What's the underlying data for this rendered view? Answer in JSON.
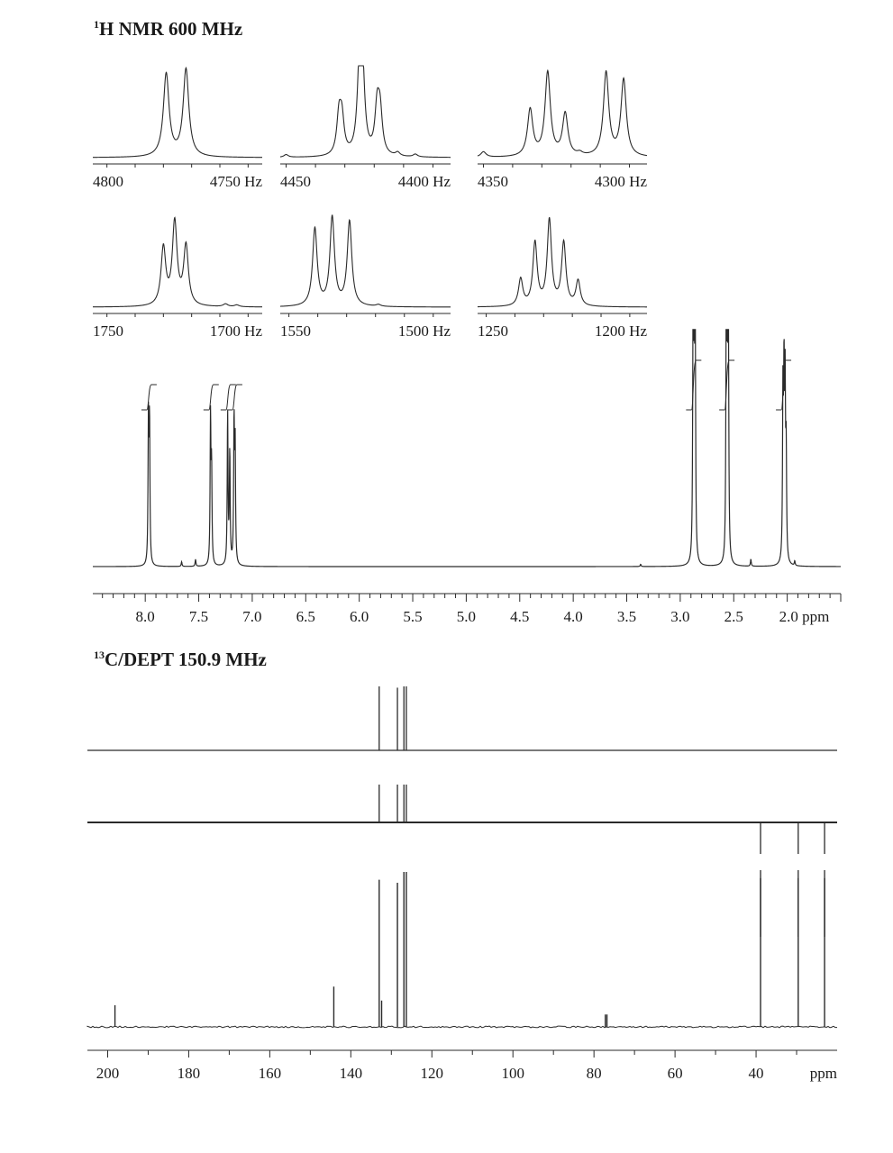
{
  "h_title": {
    "mass": "1",
    "text": "H NMR 600 MHz"
  },
  "c_title": {
    "mass": "13",
    "text": "C/DEPT 150.9 MHz"
  },
  "chart_data": [
    {
      "type": "line",
      "panel": "inset-1",
      "x_range": [
        4805,
        4745
      ],
      "ticks": [
        4800,
        4790,
        4780,
        4770,
        4760,
        4750
      ],
      "tick_labels": [
        {
          "x": 4800,
          "text": "4800"
        },
        {
          "x": 4750,
          "text": "4750 Hz"
        }
      ],
      "peaks": [
        {
          "x": 4779,
          "h": 0.92
        },
        {
          "x": 4772,
          "h": 0.97
        }
      ],
      "width": 1.2
    },
    {
      "type": "line",
      "panel": "inset-2",
      "x_range": [
        4452,
        4394
      ],
      "ticks": [
        4450,
        4440,
        4430,
        4420,
        4410,
        4400
      ],
      "tick_labels": [
        {
          "x": 4450,
          "text": "4450"
        },
        {
          "x": 4400,
          "text": "4400 Hz"
        }
      ],
      "peaks": [
        {
          "x": 4450,
          "h": 0.03
        },
        {
          "x": 4432,
          "h": 0.42
        },
        {
          "x": 4431,
          "h": 0.38
        },
        {
          "x": 4425,
          "h": 0.9
        },
        {
          "x": 4424,
          "h": 0.85
        },
        {
          "x": 4419,
          "h": 0.5
        },
        {
          "x": 4418,
          "h": 0.45
        },
        {
          "x": 4412,
          "h": 0.04
        },
        {
          "x": 4406,
          "h": 0.03
        }
      ],
      "width": 0.9
    },
    {
      "type": "line",
      "panel": "inset-3",
      "x_range": [
        4352,
        4294
      ],
      "ticks": [
        4350,
        4340,
        4330,
        4320,
        4310,
        4300
      ],
      "tick_labels": [
        {
          "x": 4350,
          "text": "4350"
        },
        {
          "x": 4300,
          "text": "4300 Hz"
        }
      ],
      "peaks": [
        {
          "x": 4350,
          "h": 0.06
        },
        {
          "x": 4334,
          "h": 0.52
        },
        {
          "x": 4328,
          "h": 0.93
        },
        {
          "x": 4322,
          "h": 0.47
        },
        {
          "x": 4317,
          "h": 0.03
        },
        {
          "x": 4308,
          "h": 0.93
        },
        {
          "x": 4302,
          "h": 0.85
        }
      ],
      "width": 1.1
    },
    {
      "type": "line",
      "panel": "inset-4",
      "x_range": [
        1755,
        1695
      ],
      "ticks": [
        1750,
        1740,
        1730,
        1720,
        1710,
        1700
      ],
      "tick_labels": [
        {
          "x": 1750,
          "text": "1750"
        },
        {
          "x": 1700,
          "text": "1700 Hz"
        }
      ],
      "peaks": [
        {
          "x": 1730,
          "h": 0.64
        },
        {
          "x": 1726,
          "h": 0.92
        },
        {
          "x": 1722,
          "h": 0.66
        },
        {
          "x": 1708,
          "h": 0.03
        },
        {
          "x": 1704,
          "h": 0.02
        }
      ],
      "width": 1.0
    },
    {
      "type": "line",
      "panel": "inset-5",
      "x_range": [
        1553,
        1494
      ],
      "ticks": [
        1550,
        1540,
        1530,
        1520,
        1510,
        1500
      ],
      "tick_labels": [
        {
          "x": 1550,
          "text": "1550"
        },
        {
          "x": 1500,
          "text": "1500 Hz"
        }
      ],
      "peaks": [
        {
          "x": 1541,
          "h": 0.86
        },
        {
          "x": 1535,
          "h": 0.98
        },
        {
          "x": 1529,
          "h": 0.94
        },
        {
          "x": 1519,
          "h": 0.02
        }
      ],
      "width": 0.95
    },
    {
      "type": "line",
      "panel": "inset-6",
      "x_range": [
        1253,
        1194
      ],
      "ticks": [
        1250,
        1240,
        1230,
        1220,
        1210,
        1200
      ],
      "tick_labels": [
        {
          "x": 1250,
          "text": "1250"
        },
        {
          "x": 1200,
          "text": "1200 Hz"
        }
      ],
      "peaks": [
        {
          "x": 1238,
          "h": 0.3
        },
        {
          "x": 1233,
          "h": 0.7
        },
        {
          "x": 1228,
          "h": 0.95
        },
        {
          "x": 1223,
          "h": 0.7
        },
        {
          "x": 1218,
          "h": 0.28
        }
      ],
      "width": 0.9
    },
    {
      "type": "line",
      "panel": "1h-main",
      "x_range": [
        8.49,
        1.5
      ],
      "xlabel": "ppm",
      "ticks_major": [
        8.0,
        7.5,
        7.0,
        6.5,
        6.0,
        5.5,
        5.0,
        4.5,
        4.0,
        3.5,
        3.0,
        2.5,
        2.0
      ],
      "tick_labels": [
        "8.0",
        "7.5",
        "7.0",
        "6.5",
        "6.0",
        "5.5",
        "5.0",
        "4.5",
        "4.0",
        "3.5",
        "3.0",
        "2.5",
        "2.0 ppm"
      ],
      "peaks": [
        {
          "x": 7.97,
          "h": 0.62
        },
        {
          "x": 7.96,
          "h": 0.6
        },
        {
          "x": 7.66,
          "h": 0.02
        },
        {
          "x": 7.53,
          "h": 0.03
        },
        {
          "x": 7.39,
          "h": 0.63
        },
        {
          "x": 7.38,
          "h": 0.4
        },
        {
          "x": 7.23,
          "h": 0.65
        },
        {
          "x": 7.21,
          "h": 0.48
        },
        {
          "x": 7.17,
          "h": 0.6
        },
        {
          "x": 7.16,
          "h": 0.5
        },
        {
          "x": 3.37,
          "h": 0.01
        },
        {
          "x": 2.88,
          "h": 1.0
        },
        {
          "x": 2.87,
          "h": 0.98
        },
        {
          "x": 2.86,
          "h": 0.96
        },
        {
          "x": 2.57,
          "h": 1.0
        },
        {
          "x": 2.56,
          "h": 0.98
        },
        {
          "x": 2.55,
          "h": 0.96
        },
        {
          "x": 2.34,
          "h": 0.03
        },
        {
          "x": 2.04,
          "h": 0.72
        },
        {
          "x": 2.03,
          "h": 0.75
        },
        {
          "x": 2.02,
          "h": 0.71
        },
        {
          "x": 2.01,
          "h": 0.45
        },
        {
          "x": 1.93,
          "h": 0.02
        }
      ],
      "integrals": [
        7.96,
        7.38,
        7.22,
        7.16,
        2.87,
        2.56,
        2.03
      ]
    },
    {
      "type": "line",
      "panel": "13c-dept90",
      "x_range": [
        205,
        20
      ],
      "peaks": [
        {
          "x": 133.0,
          "h": 1.0
        },
        {
          "x": 128.5,
          "h": 0.98
        },
        {
          "x": 126.9,
          "h": 1.0
        },
        {
          "x": 126.3,
          "h": 1.0
        }
      ]
    },
    {
      "type": "line",
      "panel": "13c-dept135",
      "x_range": [
        205,
        20
      ],
      "peaks": [
        {
          "x": 133.0,
          "h": 1.0
        },
        {
          "x": 128.5,
          "h": 1.0
        },
        {
          "x": 126.9,
          "h": 1.0
        },
        {
          "x": 126.3,
          "h": 1.0
        },
        {
          "x": 38.9,
          "h": -1.0
        },
        {
          "x": 29.6,
          "h": -1.0
        },
        {
          "x": 23.1,
          "h": -1.0
        }
      ]
    },
    {
      "type": "line",
      "panel": "13c-broadband",
      "x_range": [
        205,
        20
      ],
      "xlabel": "ppm",
      "ticks_major": [
        200,
        180,
        160,
        140,
        120,
        100,
        80,
        60,
        40
      ],
      "tick_labels": [
        "200",
        "180",
        "160",
        "140",
        "120",
        "100",
        "80",
        "60",
        "40"
      ],
      "peaks": [
        {
          "x": 198.2,
          "h": 0.14
        },
        {
          "x": 144.2,
          "h": 0.26
        },
        {
          "x": 133.0,
          "h": 0.95
        },
        {
          "x": 132.4,
          "h": 0.17
        },
        {
          "x": 128.5,
          "h": 0.93
        },
        {
          "x": 126.9,
          "h": 1.0
        },
        {
          "x": 126.3,
          "h": 1.0
        },
        {
          "x": 77.2,
          "h": 0.08
        },
        {
          "x": 76.8,
          "h": 0.08
        },
        {
          "x": 38.9,
          "h": 0.96
        },
        {
          "x": 29.6,
          "h": 0.96
        },
        {
          "x": 23.1,
          "h": 0.96
        }
      ]
    }
  ]
}
